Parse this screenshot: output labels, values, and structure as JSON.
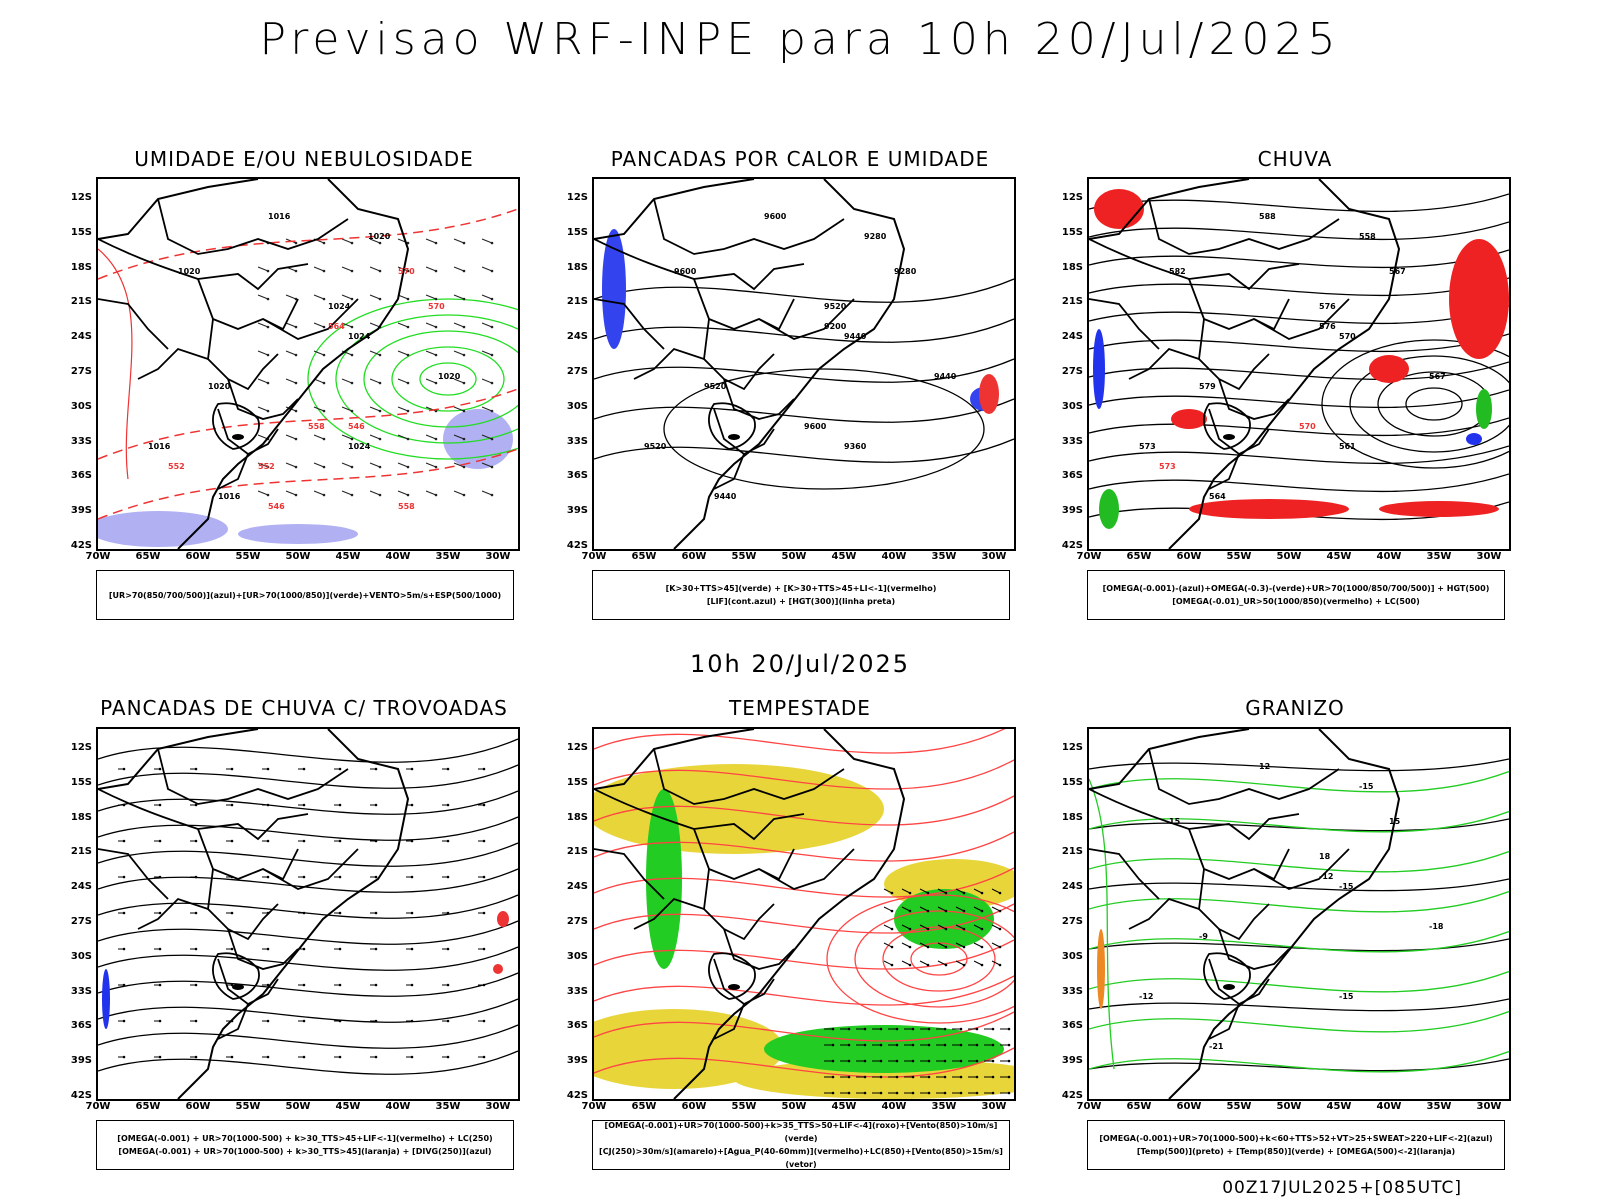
{
  "header": {
    "title": "Previsao WRF-INPE  para 10h 20/Jul/2025",
    "subtitle": "10h 20/Jul/2025",
    "footer": "00Z17JUL2025+[085UTC]"
  },
  "axes": {
    "lat_labels": [
      "12S",
      "15S",
      "18S",
      "21S",
      "24S",
      "27S",
      "30S",
      "33S",
      "36S",
      "39S",
      "42S"
    ],
    "lon_labels": [
      "70W",
      "65W",
      "60W",
      "55W",
      "50W",
      "45W",
      "40W",
      "35W",
      "30W"
    ]
  },
  "panels": [
    {
      "title": "UMIDADE E/OU NEBULOSIDADE",
      "legend": [
        "[UR>70(850/700/500)](azul)+[UR>70(1000/850)](verde)+VENTO>5m/s+ESP(500/1000)"
      ],
      "labels": [
        "1016",
        "1020",
        "1024",
        "1020",
        "1016",
        "1024",
        "1020",
        "1016",
        "1024",
        "1020",
        "570",
        "564",
        "558",
        "552",
        "546",
        "558",
        "552",
        "546",
        "570"
      ]
    },
    {
      "title": "PANCADAS POR CALOR E UMIDADE",
      "legend": [
        "[K>30+TTS>45](verde) + [K>30+TTS>45+LI<-1](vermelho)",
        "[LIF](cont.azul) + [HGT(300)](linha preta)"
      ],
      "labels": [
        "9600",
        "9600",
        "9520",
        "9520",
        "9520",
        "9440",
        "9440",
        "9440",
        "9360",
        "9280",
        "9280",
        "9200",
        "9600"
      ]
    },
    {
      "title": "CHUVA",
      "legend": [
        "[OMEGA(-0.001)-(azul)+OMEGA(-0.3)-(verde)+UR>70(1000/850/700/500)] + HGT(500)",
        "[OMEGA(-0.01)_UR>50(1000/850)(vermelho) + LC(500)"
      ],
      "labels": [
        "588",
        "582",
        "576",
        "579",
        "573",
        "570",
        "567",
        "564",
        "561",
        "558",
        "567",
        "576",
        "570",
        "573"
      ]
    },
    {
      "title": "PANCADAS DE CHUVA C/ TROVOADAS",
      "legend": [
        "[OMEGA(-0.001) + UR>70(1000-500) + k>30_TTS>45+LIF<-1](vermelho) + LC(250)",
        "[OMEGA(-0.001) + UR>70(1000-500) + k>30_TTS>45](laranja) + [DIVG(250)](azul)"
      ],
      "labels": []
    },
    {
      "title": "TEMPESTADE",
      "legend": [
        "[OMEGA(-0.001)+UR>70(1000-500)+k>35_TTS>50+LIF<-4](roxo)+[Vento(850)>10m/s](verde)",
        "[CJ(250)>30m/s](amarelo)+[Agua_P(40-60mm)](vermelho)+LC(850)+[Vento(850)>15m/s](vetor)"
      ],
      "labels": []
    },
    {
      "title": "GRANIZO",
      "legend": [
        "[OMEGA(-0.001)+UR>70(1000-500)+k<60+TTS>52+VT>25+SWEAT>220+LIF<-2](azul)",
        "[Temp(500)](preto) + [Temp(850)](verde) + [OMEGA(500)<-2](laranja)"
      ],
      "labels": [
        "12",
        "15",
        "18",
        "-9",
        "-12",
        "-15",
        "-18",
        "-21",
        "-15",
        "-15",
        "15",
        "-12"
      ]
    }
  ]
}
